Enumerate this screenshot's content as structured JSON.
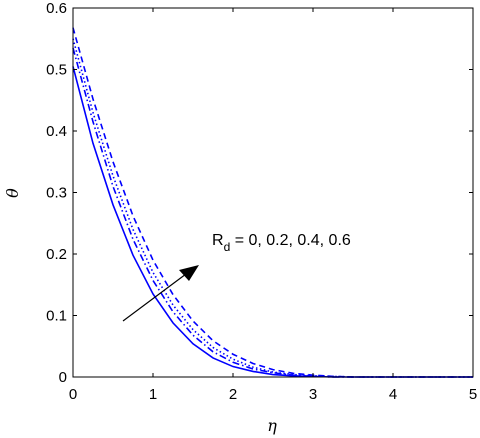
{
  "chart_data": {
    "type": "line",
    "xlabel": "η",
    "ylabel": "θ",
    "xlim": [
      0,
      5
    ],
    "ylim": [
      0,
      0.6
    ],
    "xticks": [
      "0",
      "1",
      "2",
      "3",
      "4",
      "5"
    ],
    "yticks": [
      "0",
      "0.1",
      "0.2",
      "0.3",
      "0.4",
      "0.5",
      "0.6"
    ],
    "grid": false,
    "line_color": "#0000ff",
    "annotation": {
      "main": "R",
      "sub": "d",
      "rest": " = 0, 0.2, 0.4, 0.6"
    },
    "x": [
      0,
      0.25,
      0.5,
      0.75,
      1,
      1.25,
      1.5,
      1.75,
      2,
      2.25,
      2.5,
      2.75,
      3,
      3.25,
      3.5,
      4,
      4.5,
      5
    ],
    "series": [
      {
        "style": "solid",
        "values": [
          0.505,
          0.38,
          0.28,
          0.198,
          0.135,
          0.088,
          0.054,
          0.031,
          0.017,
          0.009,
          0.004,
          0.002,
          0.001,
          0,
          0,
          0,
          0,
          0
        ]
      },
      {
        "style": "dashdot",
        "values": [
          0.535,
          0.415,
          0.31,
          0.224,
          0.157,
          0.106,
          0.068,
          0.041,
          0.024,
          0.013,
          0.007,
          0.003,
          0.001,
          0,
          0,
          0,
          0,
          0
        ]
      },
      {
        "style": "dotted",
        "values": [
          0.55,
          0.43,
          0.327,
          0.24,
          0.17,
          0.117,
          0.077,
          0.048,
          0.029,
          0.016,
          0.008,
          0.004,
          0.002,
          0.001,
          0,
          0,
          0,
          0
        ]
      },
      {
        "style": "dashed",
        "values": [
          0.568,
          0.452,
          0.35,
          0.262,
          0.19,
          0.134,
          0.091,
          0.059,
          0.037,
          0.022,
          0.012,
          0.006,
          0.003,
          0.001,
          0,
          0,
          0,
          0
        ]
      }
    ]
  }
}
